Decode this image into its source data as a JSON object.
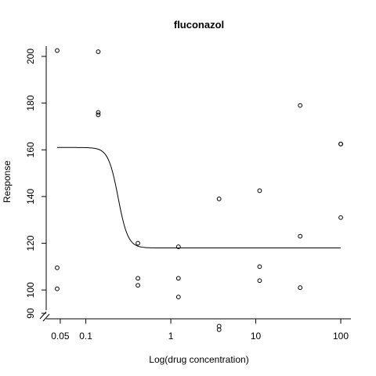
{
  "chart_data": {
    "type": "scatter",
    "title": "fluconazol",
    "xlabel": "Log(drug concentration)",
    "ylabel": "Response",
    "x_scale": "log",
    "xlim": [
      0.045,
      110
    ],
    "ylim": [
      85,
      207
    ],
    "x_ticks": [
      {
        "value": 0.05,
        "label": "0.05"
      },
      {
        "value": 0.1,
        "label": "0.1"
      },
      {
        "value": 1,
        "label": "1"
      },
      {
        "value": 10,
        "label": "10"
      },
      {
        "value": 100,
        "label": "100"
      }
    ],
    "y_ticks": [
      {
        "value": 90,
        "label": "90"
      },
      {
        "value": 100,
        "label": "100"
      },
      {
        "value": 120,
        "label": "120"
      },
      {
        "value": 140,
        "label": "140"
      },
      {
        "value": 160,
        "label": "160"
      },
      {
        "value": 180,
        "label": "180"
      },
      {
        "value": 200,
        "label": "200"
      }
    ],
    "points": [
      {
        "x": 0.046,
        "y": 202.5
      },
      {
        "x": 0.046,
        "y": 109.5
      },
      {
        "x": 0.046,
        "y": 100.5
      },
      {
        "x": 0.14,
        "y": 202
      },
      {
        "x": 0.14,
        "y": 176
      },
      {
        "x": 0.14,
        "y": 175
      },
      {
        "x": 0.41,
        "y": 120
      },
      {
        "x": 0.41,
        "y": 105
      },
      {
        "x": 0.41,
        "y": 102
      },
      {
        "x": 1.23,
        "y": 118.5
      },
      {
        "x": 1.23,
        "y": 105
      },
      {
        "x": 1.23,
        "y": 97
      },
      {
        "x": 3.7,
        "y": 139
      },
      {
        "x": 3.7,
        "y": 84.5
      },
      {
        "x": 3.7,
        "y": 83
      },
      {
        "x": 11.1,
        "y": 142.5
      },
      {
        "x": 11.1,
        "y": 110
      },
      {
        "x": 11.1,
        "y": 104
      },
      {
        "x": 33.3,
        "y": 179
      },
      {
        "x": 33.3,
        "y": 123
      },
      {
        "x": 33.3,
        "y": 101
      },
      {
        "x": 100,
        "y": 162.5
      },
      {
        "x": 100,
        "y": 131
      },
      {
        "x": 100,
        "y": 162.5
      }
    ],
    "fitted_curve": {
      "type": "log-logistic",
      "upper": 161,
      "lower": 118,
      "ec50": 0.24,
      "slope": 7.5,
      "x_range": [
        0.046,
        100
      ]
    },
    "grid": false,
    "legend": "none"
  }
}
